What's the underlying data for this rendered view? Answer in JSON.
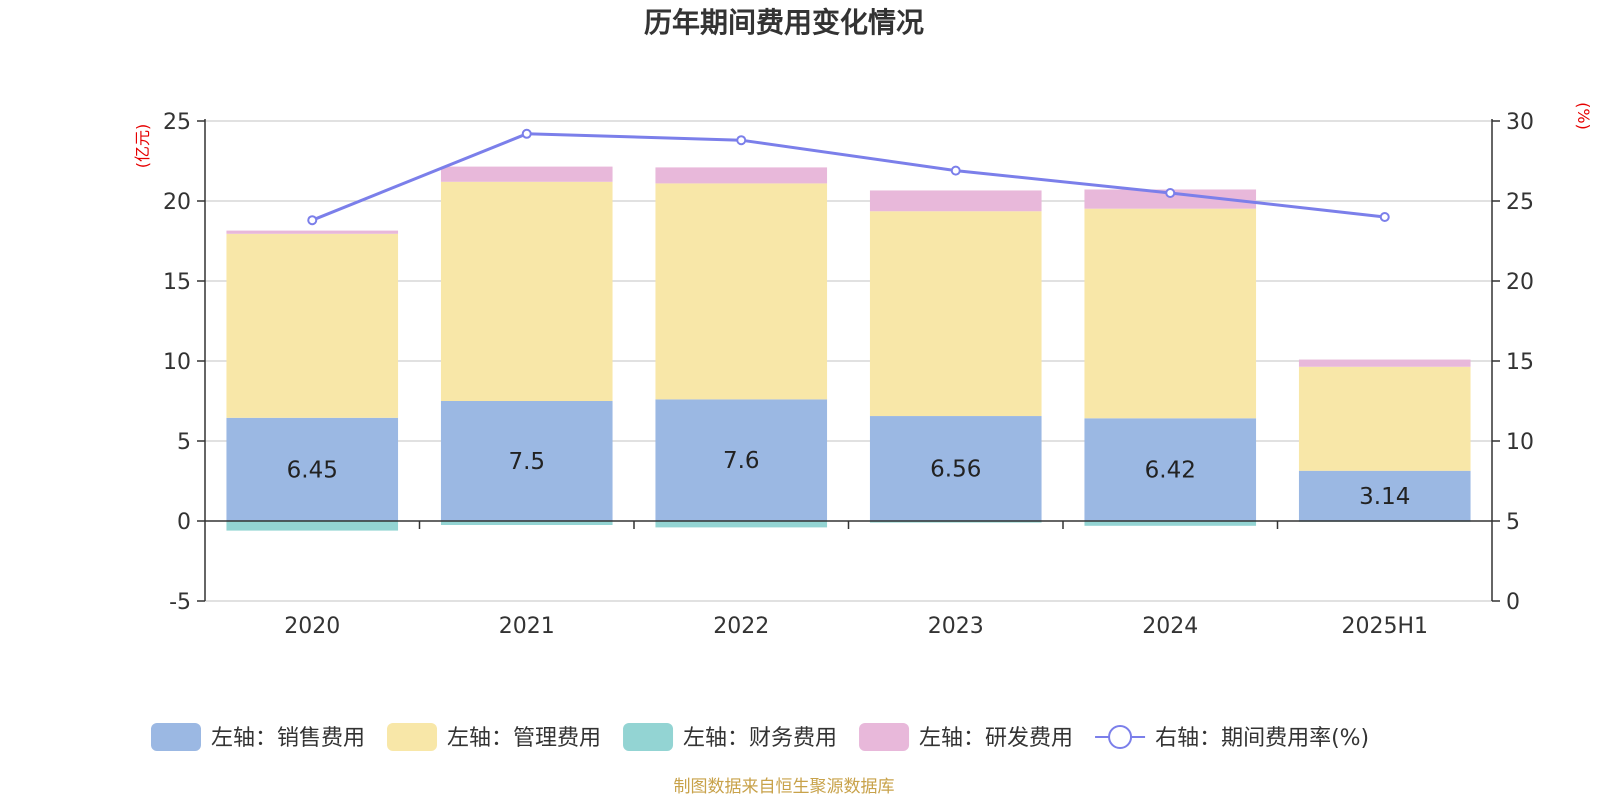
{
  "chart_data": {
    "type": "bar",
    "title": "历年期间费用变化情况",
    "categories": [
      "2020",
      "2021",
      "2022",
      "2023",
      "2024",
      "2025H1"
    ],
    "left_axis": {
      "unit": "(亿元)",
      "ylim": [
        -5,
        25
      ],
      "ticks": [
        "-5",
        "0",
        "5",
        "10",
        "15",
        "20",
        "25"
      ],
      "tick_values": [
        -5,
        0,
        5,
        10,
        15,
        20,
        25
      ]
    },
    "right_axis": {
      "unit": "(%)",
      "ylim": [
        0,
        30
      ],
      "ticks": [
        "0",
        "5",
        "10",
        "15",
        "20",
        "25",
        "30"
      ],
      "tick_values": [
        0,
        5,
        10,
        15,
        20,
        25,
        30
      ]
    },
    "stacked": true,
    "grid": true,
    "legend_position": "bottom",
    "series": [
      {
        "name": "左轴：销售费用",
        "kind": "bar",
        "axis": "left",
        "color": "#9bb8e3",
        "values": [
          6.45,
          7.5,
          7.6,
          6.56,
          6.42,
          3.14
        ],
        "data_labels": [
          "6.45",
          "7.5",
          "7.6",
          "6.56",
          "6.42",
          "3.14"
        ]
      },
      {
        "name": "左轴：管理费用",
        "kind": "bar",
        "axis": "left",
        "color": "#f8e7a8",
        "values": [
          11.5,
          13.7,
          13.5,
          12.8,
          13.1,
          6.5
        ]
      },
      {
        "name": "左轴：财务费用",
        "kind": "bar",
        "axis": "left",
        "color": "#93d4d3",
        "values": [
          -0.6,
          -0.25,
          -0.4,
          -0.1,
          -0.3,
          -0.05
        ]
      },
      {
        "name": "左轴：研发费用",
        "kind": "bar",
        "axis": "left",
        "color": "#e8b8da",
        "values": [
          0.2,
          0.95,
          1.0,
          1.3,
          1.2,
          0.45
        ]
      },
      {
        "name": "右轴：期间费用率(%)",
        "kind": "line",
        "axis": "right",
        "color": "#7b7fea",
        "values": [
          23.8,
          29.2,
          28.8,
          26.9,
          25.5,
          24.0
        ]
      }
    ]
  },
  "source_note": "制图数据来自恒生聚源数据库"
}
